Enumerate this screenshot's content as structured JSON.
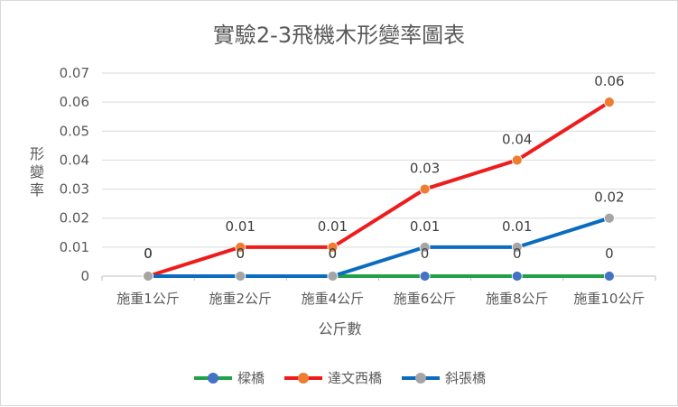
{
  "chart_data": {
    "type": "line",
    "title": "實驗2-3飛機木形變率圖表",
    "xlabel": "公斤數",
    "ylabel": "形變率",
    "categories": [
      "施重1公斤",
      "施重2公斤",
      "施重4公斤",
      "施重6公斤",
      "施重8公斤",
      "施重10公斤"
    ],
    "ylim": [
      0,
      0.07
    ],
    "yticks": [
      "0",
      "0.01",
      "0.02",
      "0.03",
      "0.04",
      "0.05",
      "0.06",
      "0.07"
    ],
    "grid": true,
    "legend_position": "bottom",
    "series": [
      {
        "name": "樑橋",
        "values": [
          0,
          0,
          0,
          0,
          0,
          0
        ],
        "labels": [
          "0",
          "0",
          "0",
          "0",
          "0",
          "0"
        ],
        "line_color": "#21a148",
        "marker_color": "#4472c4"
      },
      {
        "name": "達文西橋",
        "values": [
          0,
          0.01,
          0.01,
          0.03,
          0.04,
          0.06
        ],
        "labels": [
          "0",
          "0.01",
          "0.01",
          "0.03",
          "0.04",
          "0.06"
        ],
        "line_color": "#ee1c1c",
        "marker_color": "#ed7d31"
      },
      {
        "name": "斜張橋",
        "values": [
          0,
          0,
          0,
          0.01,
          0.01,
          0.02
        ],
        "labels": [
          "0",
          "0",
          "0",
          "0.01",
          "0.01",
          "0.02"
        ],
        "line_color": "#0b6cbf",
        "marker_color": "#a5a5a5"
      }
    ]
  }
}
